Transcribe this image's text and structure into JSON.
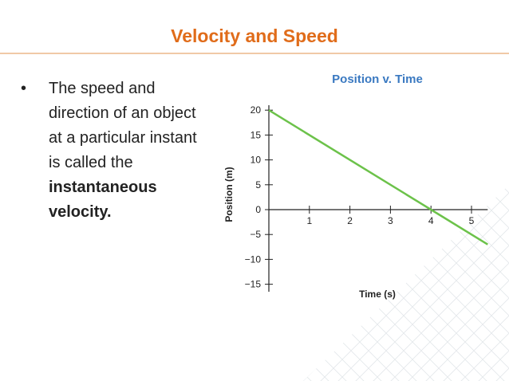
{
  "slide": {
    "title": "Velocity and Speed",
    "bullet_part1": "The speed and direction of an object at a particular instant is called the",
    "bullet_bold": "instantaneous velocity."
  },
  "colors": {
    "title": "#e06c1a",
    "rule": "#f0c9a6",
    "chart_title": "#3a79c1",
    "line": "#6cc24a",
    "axis": "#222222"
  },
  "chart_data": {
    "type": "line",
    "title": "Position v. Time",
    "xlabel": "Time (s)",
    "ylabel": "Position (m)",
    "x_ticks": [
      1,
      2,
      3,
      4,
      5
    ],
    "y_ticks": [
      20,
      15,
      10,
      5,
      0,
      -5,
      -10,
      -15
    ],
    "y_tick_labels": [
      "20",
      "15",
      "10",
      "5",
      "0",
      "−5",
      "−10",
      "−15"
    ],
    "xlim": [
      0,
      5.4
    ],
    "ylim": [
      -16.5,
      21
    ],
    "grid": false,
    "series": [
      {
        "x": [
          0,
          4,
          5.4
        ],
        "y": [
          20,
          0,
          -7
        ]
      }
    ]
  }
}
